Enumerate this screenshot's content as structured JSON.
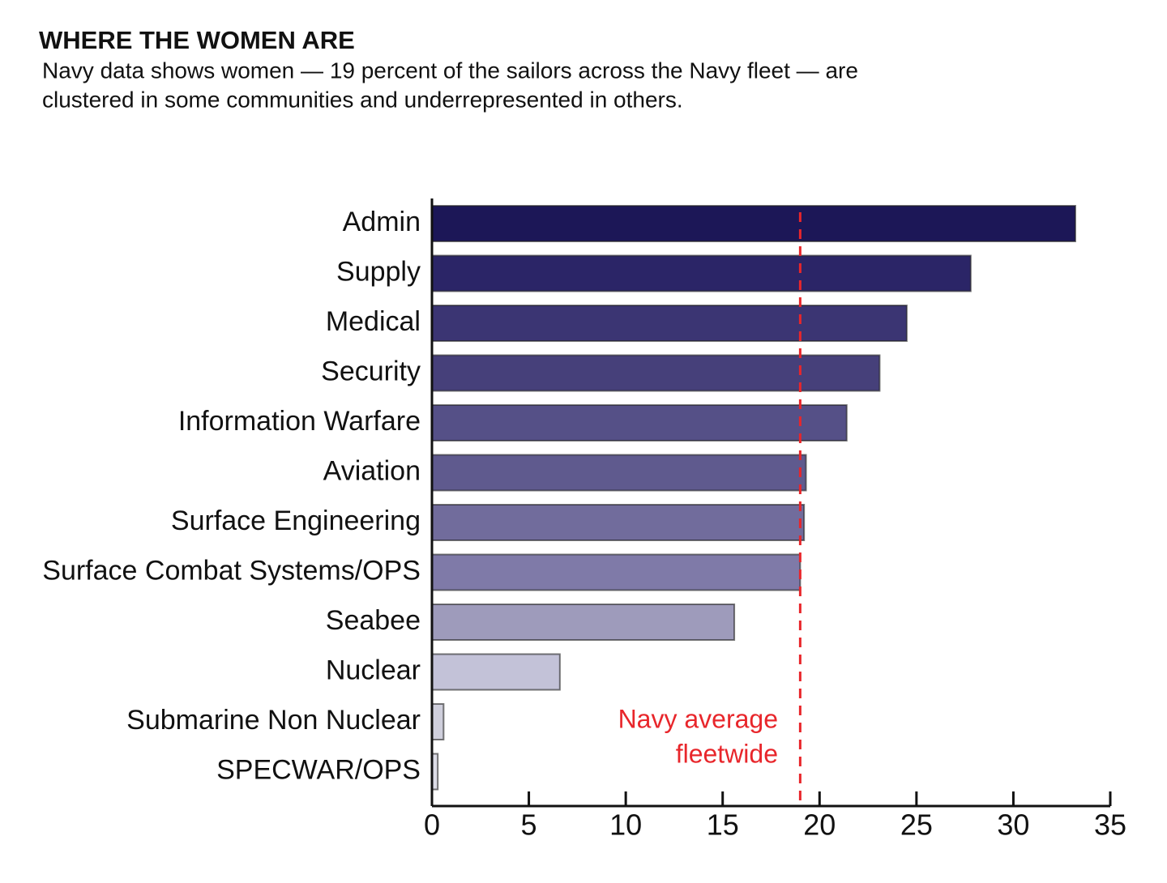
{
  "chart_data": {
    "type": "barh",
    "title": "WHERE THE WOMEN ARE",
    "subtitle": [
      "Navy data shows women — 19 percent of the sailors across the Navy fleet — are",
      "clustered in some communities and underrepresented in others."
    ],
    "categories": [
      "Admin",
      "Supply",
      "Medical",
      "Security",
      "Information Warfare",
      "Aviation",
      "Surface Engineering",
      "Surface Combat Systems/OPS",
      "Seabee",
      "Nuclear",
      "Submarine Non Nuclear",
      "SPECWAR/OPS"
    ],
    "values": [
      33.2,
      27.8,
      24.5,
      23.1,
      21.4,
      19.3,
      19.2,
      19.0,
      15.6,
      6.6,
      0.6,
      0.3
    ],
    "colors": [
      "#1c1757",
      "#2b2567",
      "#3b3573",
      "#46407a",
      "#555087",
      "#5f5a8e",
      "#716c9c",
      "#7f7aa8",
      "#9e9bbb",
      "#c3c2d8",
      "#cfcfdc",
      "#dcdce6"
    ],
    "xlim": [
      0,
      35
    ],
    "xticks": [
      0,
      5,
      10,
      15,
      20,
      25,
      30,
      35
    ],
    "reference_line": {
      "value": 19,
      "label": [
        "Navy average",
        "fleetwide"
      ],
      "color": "#e8262b"
    }
  }
}
